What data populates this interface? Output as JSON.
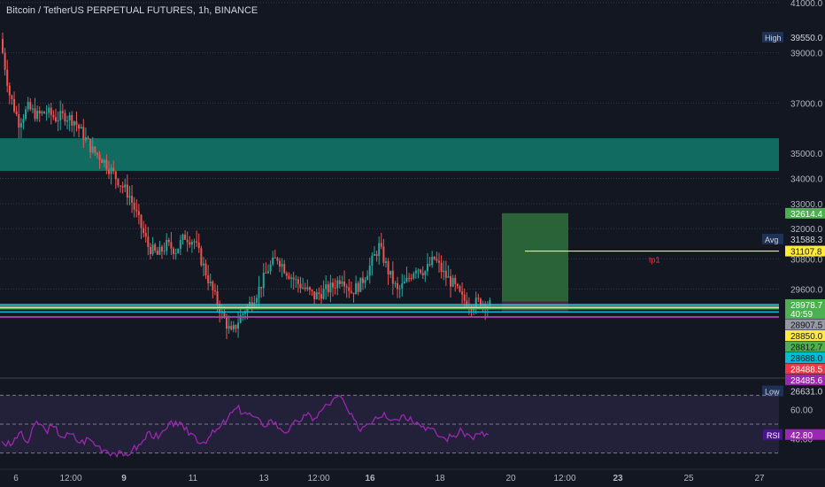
{
  "header": {
    "title": "Bitcoin / TetherUS PERPETUAL FUTURES, 1h, BINANCE"
  },
  "chart_data": [
    {
      "type": "candlestick",
      "title": "Bitcoin / TetherUS PERPETUAL FUTURES, 1h, BINANCE",
      "ylim": [
        26300,
        41100
      ],
      "y_ticks": [
        "41000.0",
        "39000.0",
        "37000.0",
        "35000.0",
        "34000.0",
        "33000.0",
        "32000.0",
        "30800.0",
        "29600.0"
      ],
      "y_tick_values": [
        41000,
        39000,
        37000,
        35000,
        34000,
        33000,
        32000,
        30800,
        29600
      ],
      "x_ticks": [
        "6",
        "12:00",
        "9",
        "11",
        "13",
        "12:00",
        "16",
        "18",
        "20",
        "12:00",
        "23",
        "25",
        "27"
      ],
      "x_tick_bold": [
        false,
        false,
        true,
        false,
        false,
        false,
        true,
        false,
        false,
        false,
        true,
        false,
        false
      ],
      "series_close": [
        39550,
        37350,
        36250,
        36800,
        36500,
        36650,
        36400,
        36500,
        36300,
        35700,
        35100,
        34800,
        34300,
        33800,
        33300,
        32300,
        31300,
        30950,
        31350,
        31150,
        31700,
        31500,
        30500,
        29500,
        28600,
        27800,
        28500,
        29000,
        29600,
        30400,
        30850,
        30300,
        29900,
        29600,
        29300,
        29500,
        29700,
        30100,
        29500,
        29800,
        30500,
        31300,
        30300,
        29500,
        29900,
        30500,
        30300,
        30800,
        30200,
        29800,
        29200,
        29000,
        29100,
        28978
      ],
      "zones": [
        {
          "top": 35600,
          "bottom": 34300,
          "color": "#127a6c"
        }
      ],
      "position_box": {
        "top": 32614.4,
        "bottom": 29100,
        "color": "#2f6b3c"
      },
      "lines": [
        {
          "value": 31107.8,
          "color": "#ffff00",
          "label": "tp1"
        },
        {
          "value": 28978.7,
          "color": "#26c6da"
        },
        {
          "value": 28907.5,
          "color": "#9598a1"
        },
        {
          "value": 28850,
          "color": "#ffeb3b"
        },
        {
          "value": 28812.7,
          "color": "#4caf50"
        },
        {
          "value": 28688,
          "color": "#00bcd4"
        },
        {
          "value": 28488.5,
          "color": "#f23645"
        },
        {
          "value": 28485.6,
          "color": "#ab47bc"
        }
      ],
      "price_labels": [
        {
          "text": "39550.0",
          "value": 39550,
          "color": "#131722",
          "text_color": "#d1d4dc",
          "tag": "High"
        },
        {
          "text": "32614.4",
          "value": 32614.4,
          "color": "#4caf50",
          "text_color": "#ffffff"
        },
        {
          "text": "31588.3",
          "value": 31588.3,
          "color": "#131722",
          "text_color": "#d1d4dc",
          "tag": "Avg"
        },
        {
          "text": "31107.8",
          "value": 31107.8,
          "color": "#ffeb3b",
          "text_color": "#131722"
        },
        {
          "text": "28978.7",
          "value": 28978.7,
          "color": "#4caf50",
          "text_color": "#ffffff",
          "sub": "40:59"
        },
        {
          "text": "28907.5",
          "value": 28907.5,
          "color": "#9598a1",
          "text_color": "#131722"
        },
        {
          "text": "28850.0",
          "value": 28850,
          "color": "#ffeb3b",
          "text_color": "#131722"
        },
        {
          "text": "28812.7",
          "value": 28812.7,
          "color": "#4caf50",
          "text_color": "#131722"
        },
        {
          "text": "28688.0",
          "value": 28688,
          "color": "#00bcd4",
          "text_color": "#131722"
        },
        {
          "text": "28488.5",
          "value": 28488.5,
          "color": "#f23645",
          "text_color": "#ffffff"
        },
        {
          "text": "28485.6",
          "value": 28485.6,
          "color": "#9c27b0",
          "text_color": "#ffffff"
        },
        {
          "text": "26631.0",
          "value": 26631,
          "color": "#131722",
          "text_color": "#d1d4dc",
          "tag": "Low"
        }
      ]
    },
    {
      "type": "line",
      "title": "RSI",
      "ylim": [
        20,
        80
      ],
      "y_ticks": [
        "60.00",
        "40.00"
      ],
      "y_tick_values": [
        60,
        40
      ],
      "bands": [
        70,
        50,
        30
      ],
      "current_label": "42.80",
      "color": "#9c27b0",
      "values": [
        38,
        35,
        44,
        37,
        52,
        46,
        48,
        41,
        43,
        37,
        40,
        35,
        32,
        30,
        28,
        32,
        36,
        45,
        40,
        47,
        52,
        46,
        43,
        37,
        42,
        47,
        54,
        61,
        58,
        55,
        49,
        53,
        47,
        45,
        52,
        56,
        54,
        61,
        66,
        69,
        57,
        47,
        50,
        55,
        58,
        53,
        56,
        55,
        50,
        48,
        43,
        40,
        42,
        45,
        41,
        43,
        42.8
      ]
    }
  ]
}
